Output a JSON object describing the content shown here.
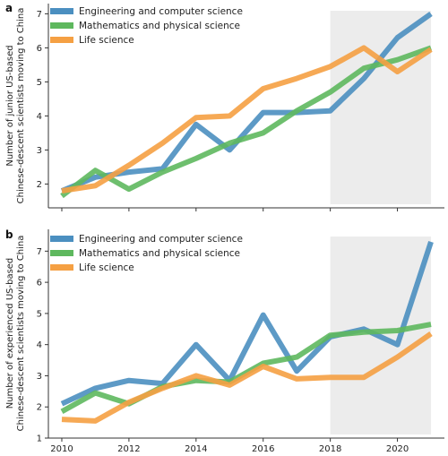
{
  "chart_data": [
    {
      "panel": "a",
      "type": "line",
      "ylabel_line1": "Number of junior US-based",
      "ylabel_line2": "Chinese-descent scientists moving to China",
      "x": [
        2010,
        2011,
        2012,
        2013,
        2014,
        2015,
        2016,
        2017,
        2018,
        2019,
        2020,
        2021
      ],
      "xticks": [
        2010,
        2012,
        2014,
        2016,
        2018,
        2020
      ],
      "xlim": [
        2009.6,
        2021.4
      ],
      "yticks": [
        2,
        3,
        4,
        5,
        6,
        7
      ],
      "ylim": [
        1.3,
        7.3
      ],
      "shaded_region": [
        2018,
        2021
      ],
      "legend_position": "top-left",
      "series": [
        {
          "name": "Engineering and computer science",
          "color": "#4b8fc0",
          "values": [
            1.8,
            2.2,
            2.35,
            2.45,
            3.75,
            3.0,
            4.1,
            4.1,
            4.15,
            5.1,
            6.3,
            7.0
          ]
        },
        {
          "name": "Mathematics and physical science",
          "color": "#5eb85e",
          "values": [
            1.65,
            2.4,
            1.85,
            2.35,
            2.75,
            3.2,
            3.5,
            4.15,
            4.7,
            5.4,
            5.65,
            6.0
          ]
        },
        {
          "name": "Life science",
          "color": "#f5a043",
          "values": [
            1.8,
            1.95,
            2.55,
            3.2,
            3.95,
            4.0,
            4.8,
            5.1,
            5.45,
            6.0,
            5.3,
            5.95
          ]
        }
      ]
    },
    {
      "panel": "b",
      "type": "line",
      "ylabel_line1": "Number of experienced US-based",
      "ylabel_line2": "Chinese-descent scientists moving to China",
      "x": [
        2010,
        2011,
        2012,
        2013,
        2014,
        2015,
        2016,
        2017,
        2018,
        2019,
        2020,
        2021
      ],
      "xticks": [
        2010,
        2012,
        2014,
        2016,
        2018,
        2020
      ],
      "xlim": [
        2009.6,
        2021.4
      ],
      "yticks": [
        1,
        2,
        3,
        4,
        5,
        6,
        7
      ],
      "ylim": [
        1.0,
        7.7
      ],
      "shaded_region": [
        2018,
        2021
      ],
      "legend_position": "top-left",
      "series": [
        {
          "name": "Engineering and computer science",
          "color": "#4b8fc0",
          "values": [
            2.1,
            2.6,
            2.85,
            2.75,
            4.0,
            2.85,
            4.95,
            3.15,
            4.25,
            4.5,
            4.0,
            7.3
          ]
        },
        {
          "name": "Mathematics and physical science",
          "color": "#5eb85e",
          "values": [
            1.85,
            2.45,
            2.1,
            2.65,
            2.85,
            2.8,
            3.4,
            3.6,
            4.3,
            4.4,
            4.45,
            4.65
          ]
        },
        {
          "name": "Life science",
          "color": "#f5a043",
          "values": [
            1.6,
            1.55,
            2.15,
            2.6,
            3.0,
            2.7,
            3.3,
            2.9,
            2.95,
            2.95,
            3.6,
            4.35
          ]
        }
      ]
    }
  ]
}
